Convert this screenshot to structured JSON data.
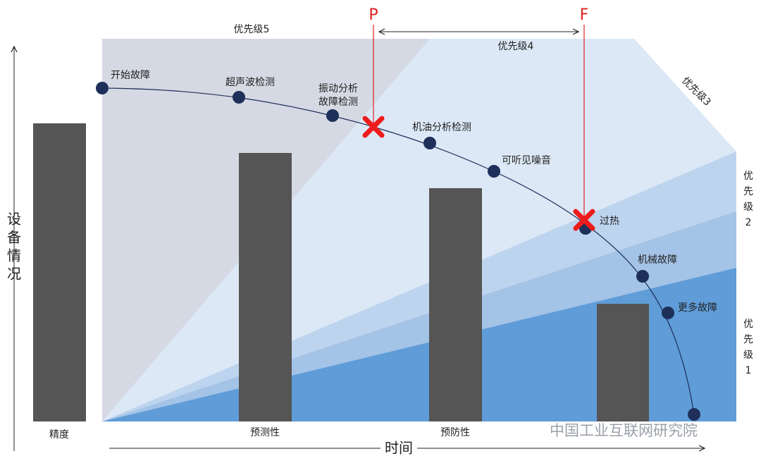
{
  "priorities": {
    "p5": "优先级5",
    "p4": "优先级4",
    "p3": "优先级3",
    "p2": [
      "优",
      "先",
      "级",
      "2"
    ],
    "p1": [
      "优",
      "先",
      "级",
      "1"
    ]
  },
  "markers": {
    "p": "P",
    "f": "F"
  },
  "axes": {
    "y": [
      "设",
      "备",
      "情",
      "况"
    ],
    "x": "时间"
  },
  "bars": [
    "精度",
    "预测性",
    "预防性"
  ],
  "points": [
    "开始故障",
    "超声波检测",
    [
      "振动分析",
      "故障检测"
    ],
    "机油分析检测",
    "可听见噪音",
    "过热",
    "机械故障",
    "更多故障"
  ],
  "watermark": "中国工业互联网研究院"
}
